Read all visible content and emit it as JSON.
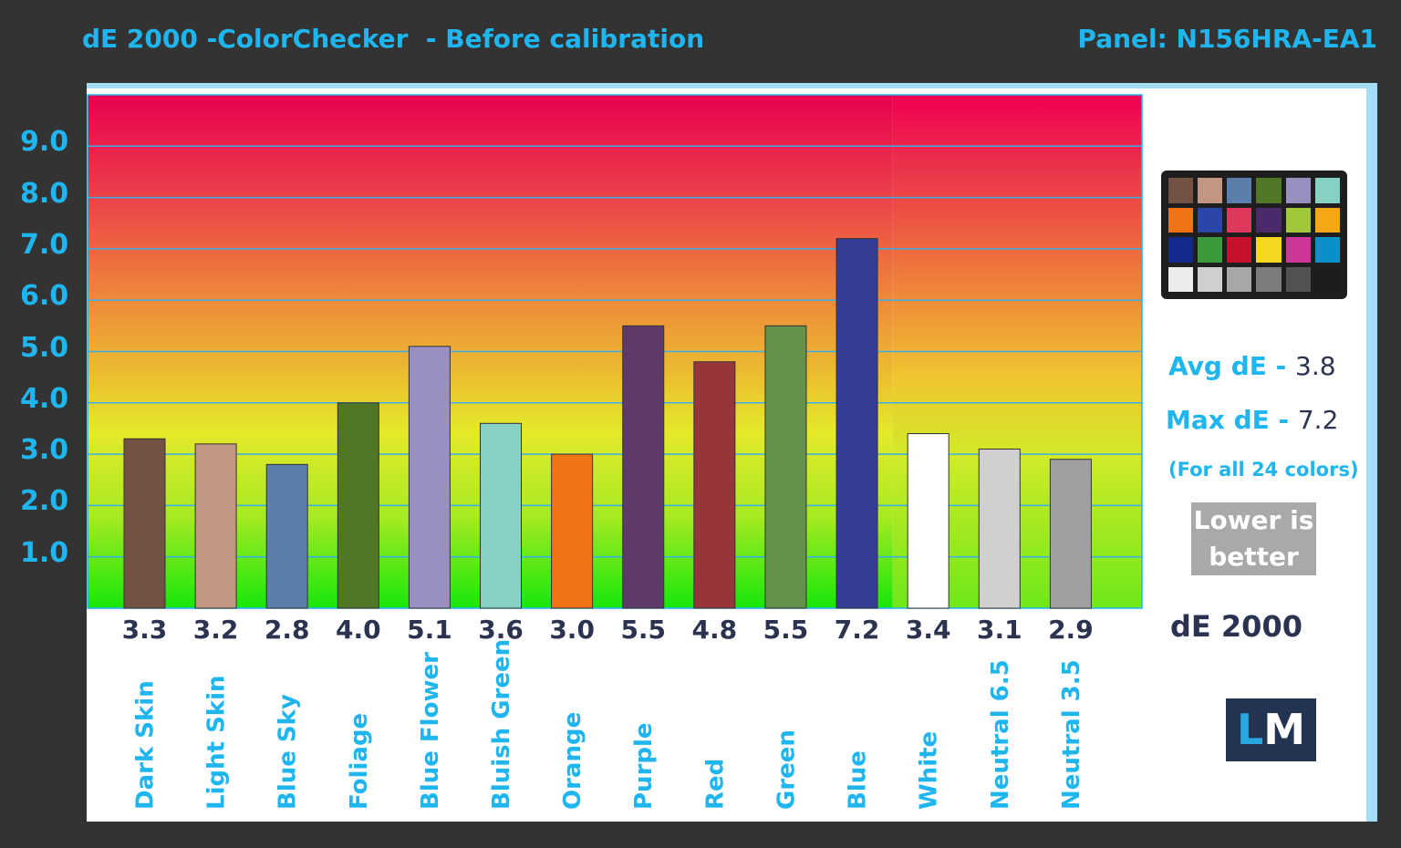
{
  "title": "dE 2000 -ColorChecker  - Before calibration",
  "panel_label": "Panel: N156HRA-EA1",
  "chart_data": {
    "type": "bar",
    "title": "dE 2000 -ColorChecker  - Before calibration",
    "xlabel": "",
    "ylabel": "",
    "ylim": [
      0,
      10
    ],
    "yticks": [
      "1.0",
      "2.0",
      "3.0",
      "4.0",
      "5.0",
      "6.0",
      "7.0",
      "8.0",
      "9.0"
    ],
    "grid": true,
    "categories": [
      "Dark Skin",
      "Light Skin",
      "Blue Sky",
      "Foliage",
      "Blue Flower",
      "Bluish Green",
      "Orange",
      "Purple",
      "Red",
      "Green",
      "Blue",
      "White",
      "Neutral 6.5",
      "Neutral 3.5"
    ],
    "values": [
      3.3,
      3.2,
      2.8,
      4.0,
      5.1,
      3.6,
      3.0,
      5.5,
      4.8,
      5.5,
      7.2,
      3.4,
      3.1,
      2.9
    ],
    "value_labels": [
      "3.3",
      "3.2",
      "2.8",
      "4.0",
      "5.1",
      "3.6",
      "3.0",
      "5.5",
      "4.8",
      "5.5",
      "7.2",
      "3.4",
      "3.1",
      "2.9"
    ],
    "bar_colors": [
      "#735244",
      "#c29682",
      "#5b7eaa",
      "#517626",
      "#9a8fc1",
      "#86d1c4",
      "#f27315",
      "#5e3a6a",
      "#96363b",
      "#65914b",
      "#343c94",
      "#ffffff",
      "#d0d0d0",
      "#a0a0a0"
    ]
  },
  "stats": {
    "avg_label": "Avg dE - ",
    "avg_value": "3.8",
    "max_label": "Max dE - ",
    "max_value": "7.2",
    "note": "(For all 24 colors)",
    "lower_line1": "Lower is",
    "lower_line2": "better",
    "metric": "dE 2000"
  },
  "checker_colors": [
    "#735244",
    "#c29682",
    "#5b7eaa",
    "#517626",
    "#9a8fc1",
    "#86d1c4",
    "#f27315",
    "#2b45a8",
    "#e0385c",
    "#4a2a6a",
    "#a0c83a",
    "#f5a612",
    "#132a8c",
    "#3a9a3c",
    "#c8102e",
    "#f5d821",
    "#d0369a",
    "#0a92c8",
    "#ececec",
    "#cfcfcf",
    "#a8a8a8",
    "#7c7c7c",
    "#525252",
    "#1c1c1c"
  ],
  "logo": {
    "l": "L",
    "m": "M"
  }
}
